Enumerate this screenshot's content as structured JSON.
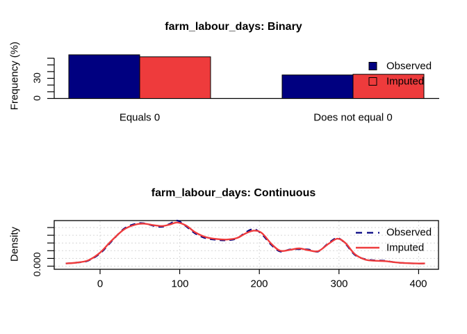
{
  "colors": {
    "observed": "#000080",
    "imputed": "#ee3b3c",
    "grid": "#d6d6d6",
    "axis": "#000000"
  },
  "chart_data": [
    {
      "type": "bar",
      "title": "farm_labour_days: Binary",
      "ylabel": "Frequency (%)",
      "ylim": [
        0,
        60
      ],
      "yticks": [
        0,
        10,
        20,
        30,
        40,
        50,
        60
      ],
      "ytick_labels": [
        "0",
        "30"
      ],
      "ytick_labeled_values": [
        0,
        30
      ],
      "categories": [
        "Equals 0",
        "Does not equal 0"
      ],
      "series": [
        {
          "name": "Observed",
          "values": [
            65,
            35
          ],
          "color_key": "observed"
        },
        {
          "name": "Imputed",
          "values": [
            62,
            36
          ],
          "color_key": "imputed"
        }
      ],
      "legend": [
        "Observed",
        "Imputed"
      ],
      "legend_position": "right",
      "grid": false
    },
    {
      "type": "line",
      "title": "farm_labour_days: Continuous",
      "ylabel": "Density",
      "ytick_label": "0.000",
      "yticks_density": [
        0.0,
        0.002,
        0.004,
        0.006,
        0.008,
        0.01
      ],
      "xticks": [
        0,
        100,
        200,
        300,
        400
      ],
      "xtick_labels": [
        "0",
        "100",
        "200",
        "300",
        "400"
      ],
      "xlim": [
        -58,
        425
      ],
      "grid": "dotted",
      "x": [
        -43,
        -30,
        -15,
        0,
        14,
        30,
        45,
        55,
        68,
        78,
        88,
        97,
        108,
        120,
        133,
        147,
        160,
        172,
        183,
        193,
        203,
        215,
        226,
        238,
        250,
        262,
        274,
        287,
        298,
        308,
        320,
        333,
        345,
        358,
        370,
        383,
        396,
        408
      ],
      "series": [
        {
          "name": "Observed",
          "style": "dashed",
          "color_key": "observed",
          "values": [
            0.0007,
            0.0009,
            0.0014,
            0.0033,
            0.0063,
            0.0097,
            0.011,
            0.0111,
            0.0104,
            0.0102,
            0.011,
            0.0118,
            0.0103,
            0.0084,
            0.0072,
            0.0068,
            0.0067,
            0.0072,
            0.0088,
            0.0096,
            0.0083,
            0.0055,
            0.0038,
            0.0043,
            0.0044,
            0.0043,
            0.0038,
            0.006,
            0.0073,
            0.0058,
            0.0029,
            0.0018,
            0.0015,
            0.0014,
            0.001,
            0.0008,
            0.0007,
            0.0007
          ]
        },
        {
          "name": "Imputed",
          "style": "solid",
          "color_key": "imputed",
          "values": [
            0.0007,
            0.0009,
            0.0015,
            0.0035,
            0.0065,
            0.0095,
            0.0108,
            0.011,
            0.0106,
            0.0104,
            0.0108,
            0.0113,
            0.0105,
            0.0087,
            0.0075,
            0.007,
            0.0069,
            0.0073,
            0.0085,
            0.0092,
            0.0086,
            0.0058,
            0.004,
            0.0042,
            0.0046,
            0.0041,
            0.0039,
            0.0058,
            0.0071,
            0.006,
            0.0031,
            0.0017,
            0.0014,
            0.0013,
            0.001,
            0.0008,
            0.0007,
            0.0007
          ]
        }
      ],
      "legend": [
        "Observed",
        "Imputed"
      ],
      "legend_position": "top-right-inside"
    }
  ]
}
